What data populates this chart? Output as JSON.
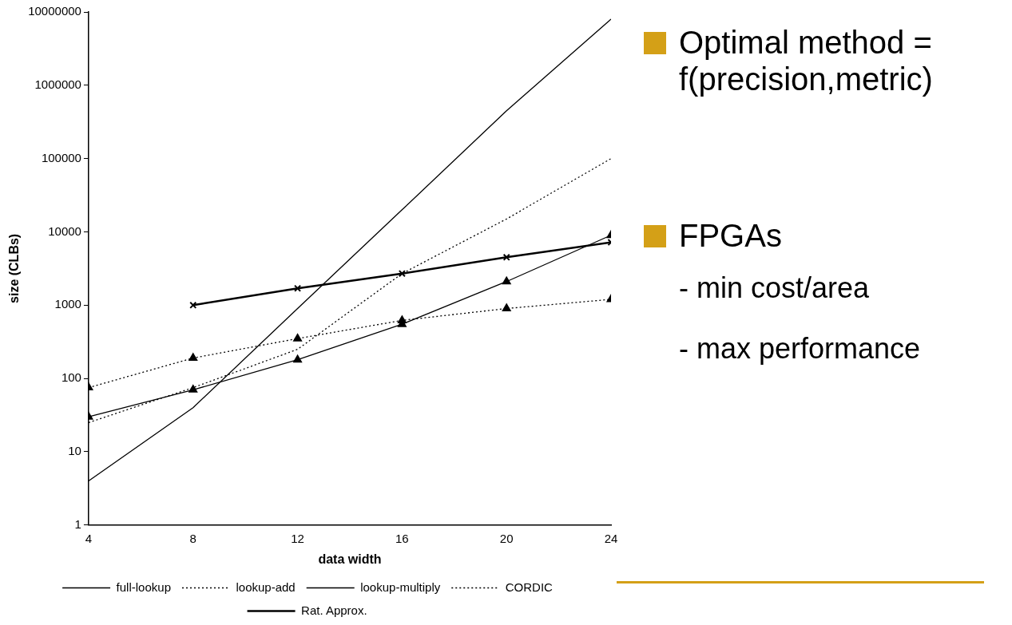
{
  "chart_data": {
    "type": "line",
    "xlabel": "data width",
    "ylabel": "size (CLBs)",
    "x": [
      4,
      8,
      12,
      16,
      20,
      24
    ],
    "xlim": [
      4,
      24
    ],
    "xticks": [
      4,
      8,
      12,
      16,
      20,
      24
    ],
    "ylim": [
      1,
      10000000
    ],
    "yticks": [
      1,
      10,
      100,
      1000,
      10000,
      100000,
      1000000,
      10000000
    ],
    "log": true,
    "grid": false,
    "legend": "bottom",
    "series": [
      {
        "name": "full-lookup",
        "color": "#000000",
        "values": [
          4,
          40,
          900,
          20000,
          450000,
          8000000
        ],
        "marker": "none",
        "line_style": "solid"
      },
      {
        "name": "lookup-add",
        "color": "#000000",
        "values": [
          25,
          75,
          250,
          2700,
          15000,
          100000
        ],
        "marker": "none",
        "line_style": "dotted"
      },
      {
        "name": "lookup-multiply",
        "color": "#000000",
        "values": [
          30,
          70,
          180,
          550,
          2100,
          9000
        ],
        "marker": "triangle",
        "line_style": "solid"
      },
      {
        "name": "CORDIC",
        "color": "#000000",
        "values": [
          75,
          190,
          350,
          620,
          900,
          1200
        ],
        "marker": "triangle",
        "line_style": "dotted"
      },
      {
        "name": "Rat. Approx.",
        "color": "#000000",
        "values": [
          null,
          1000,
          1700,
          2700,
          4500,
          7200
        ],
        "marker": "cross",
        "line_style": "solid"
      }
    ],
    "annotations": [
      "Optimal method = f(precision,metric)",
      "FPGAs",
      "- min cost/area",
      "- max performance"
    ]
  }
}
